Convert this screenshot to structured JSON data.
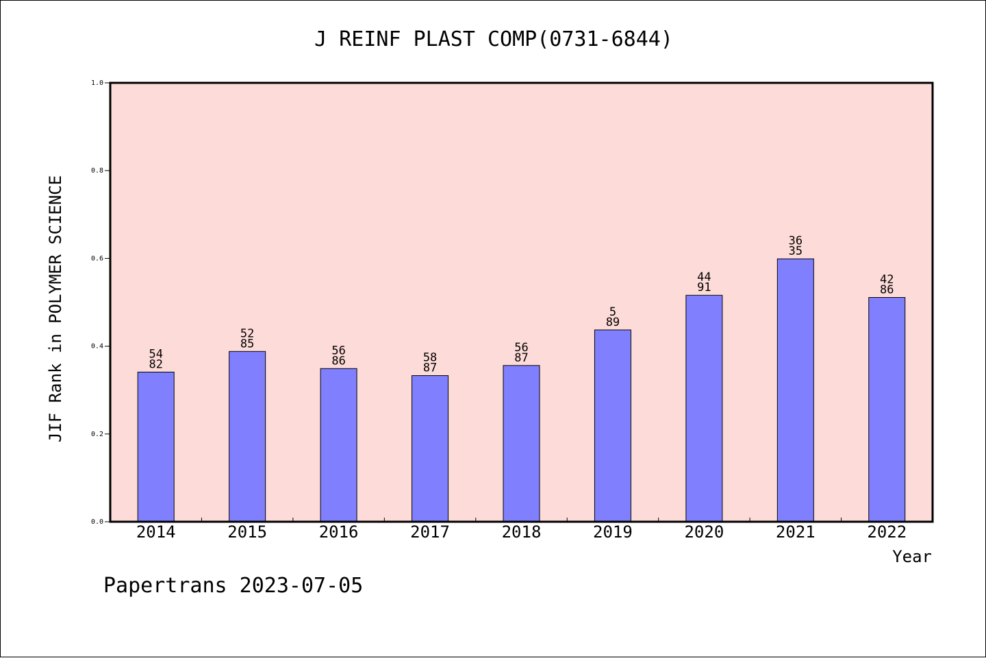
{
  "chart_data": {
    "type": "bar",
    "title": "J REINF PLAST COMP(0731-6844)",
    "xlabel": "Year",
    "ylabel": "JIF Rank in POLYMER SCIENCE",
    "ylim": [
      0,
      1.0
    ],
    "yticks": [
      "0.0",
      "0.2",
      "0.4",
      "0.6",
      "0.8",
      "1.0"
    ],
    "categories": [
      "2014",
      "2015",
      "2016",
      "2017",
      "2018",
      "2019",
      "2020",
      "2021",
      "2022"
    ],
    "values": [
      0.341,
      0.388,
      0.349,
      0.333,
      0.356,
      0.437,
      0.516,
      0.599,
      0.511
    ],
    "labels_top": [
      "54",
      "52",
      "56",
      "58",
      "56",
      "5",
      "44",
      "36",
      "42"
    ],
    "labels_bottom": [
      "82",
      "85",
      "86",
      "87",
      "87",
      "89",
      "91",
      "35",
      "86"
    ],
    "grid": false,
    "legend": "none",
    "colors": {
      "plot_background": "#fddbd8",
      "bar": "#8080ff",
      "bar_stroke": "#000000"
    }
  },
  "footer": "Papertrans 2023-07-05"
}
